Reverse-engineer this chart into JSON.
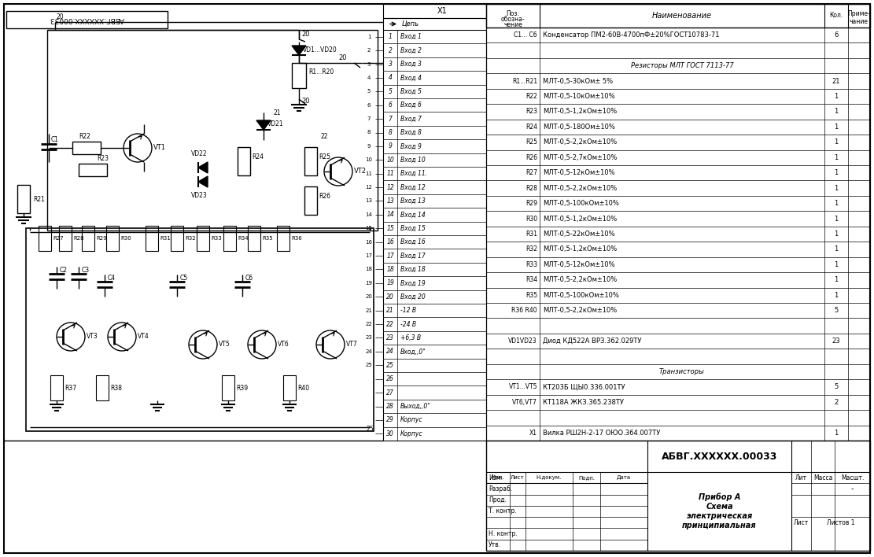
{
  "bg_color": "#ffffff",
  "fig_width": 11.11,
  "fig_height": 7.08,
  "bom_rows": [
    {
      "pos": "C1... C6",
      "name": "Конденсатор ПМ2-60В-4700пФ±20%ГОСТ10783-71",
      "qty": "6",
      "section": false
    },
    {
      "pos": "",
      "name": "",
      "qty": "",
      "section": false
    },
    {
      "pos": "",
      "name": "Резисторы МЛТ ГОСТ 7113-77",
      "qty": "",
      "section": true
    },
    {
      "pos": "R1...R21",
      "name": "МЛТ-0,5-30кОм± 5%",
      "qty": "21",
      "section": false
    },
    {
      "pos": "R22",
      "name": "МЛТ-0,5-10кОм±10%",
      "qty": "1",
      "section": false
    },
    {
      "pos": "R23",
      "name": "МЛТ-0,5-1,2кОм±10%",
      "qty": "1",
      "section": false
    },
    {
      "pos": "R24",
      "name": "МЛТ-0,5-180Ом±10%",
      "qty": "1",
      "section": false
    },
    {
      "pos": "R25",
      "name": "МЛТ-0,5-2,2кОм±10%",
      "qty": "1",
      "section": false
    },
    {
      "pos": "R26",
      "name": "МЛТ-0,5-2,7кОм±10%",
      "qty": "1",
      "section": false
    },
    {
      "pos": "R27",
      "name": "МЛТ-0,5-12кОм±10%",
      "qty": "1",
      "section": false
    },
    {
      "pos": "R28",
      "name": "МЛТ-0,5-2,2кОм±10%",
      "qty": "1",
      "section": false
    },
    {
      "pos": "R29",
      "name": "МЛТ-0,5-100кОм±10%",
      "qty": "1",
      "section": false
    },
    {
      "pos": "R30",
      "name": "МЛТ-0,5-1,2кОм±10%",
      "qty": "1",
      "section": false
    },
    {
      "pos": "R31",
      "name": "МЛТ-0,5-22кОм±10%",
      "qty": "1",
      "section": false
    },
    {
      "pos": "R32",
      "name": "МЛТ-0,5-1,2кОм±10%",
      "qty": "1",
      "section": false
    },
    {
      "pos": "R33",
      "name": "МЛТ-0,5-12кОм±10%",
      "qty": "1",
      "section": false
    },
    {
      "pos": "R34",
      "name": "МЛТ-0,5-2,2кОм±10%",
      "qty": "1",
      "section": false
    },
    {
      "pos": "R35",
      "name": "МЛТ-0,5-100кОм±10%",
      "qty": "1",
      "section": false
    },
    {
      "pos": "R36 R40",
      "name": "МЛТ-0,5-2,2кОм±10%",
      "qty": "5",
      "section": false
    },
    {
      "pos": "",
      "name": "",
      "qty": "",
      "section": false
    },
    {
      "pos": "VD1VD23",
      "name": "Диод КД522А ВРЗ.362.029ТУ",
      "qty": "23",
      "section": false
    },
    {
      "pos": "",
      "name": "",
      "qty": "",
      "section": false
    },
    {
      "pos": "",
      "name": "Транзисторы",
      "qty": "",
      "section": true
    },
    {
      "pos": "VT1...VT5",
      "name": "КТ203Б ЩЫ0.336.001ТУ",
      "qty": "5",
      "section": false
    },
    {
      "pos": "VT6,VT7",
      "name": "КТ118А ЖКЗ.365.238ТУ",
      "qty": "2",
      "section": false
    },
    {
      "pos": "",
      "name": "",
      "qty": "",
      "section": false
    },
    {
      "pos": "X1",
      "name": "Вилка РШ2Н-2-17 ОЮО.364.007ТУ",
      "qty": "1",
      "section": false
    }
  ],
  "connector_rows": [
    {
      "num": "1",
      "label": "Вход 1"
    },
    {
      "num": "2",
      "label": "Вход 2"
    },
    {
      "num": "3",
      "label": "Вход 3"
    },
    {
      "num": "4",
      "label": "Вход 4"
    },
    {
      "num": "5",
      "label": "Вход 5"
    },
    {
      "num": "6",
      "label": "Вход 6"
    },
    {
      "num": "7",
      "label": "Вход 7"
    },
    {
      "num": "8",
      "label": "Вход 8"
    },
    {
      "num": "9",
      "label": "Вход 9"
    },
    {
      "num": "10",
      "label": "Вход 10"
    },
    {
      "num": "11",
      "label": "Вход 11."
    },
    {
      "num": "12",
      "label": "Вход 12"
    },
    {
      "num": "13",
      "label": "Вход 13"
    },
    {
      "num": "14",
      "label": "Вход 14"
    },
    {
      "num": "15",
      "label": "Вход 15"
    },
    {
      "num": "16",
      "label": "Вход 16"
    },
    {
      "num": "17",
      "label": "Вход 17"
    },
    {
      "num": "18",
      "label": "Вход 18"
    },
    {
      "num": "19",
      "label": "Вход 19"
    },
    {
      "num": "20",
      "label": "Вход 20"
    },
    {
      "num": "21",
      "label": "-12 В"
    },
    {
      "num": "22",
      "label": "-24 В"
    },
    {
      "num": "23",
      "label": "+6,3 В"
    },
    {
      "num": "24",
      "label": "Вход,,0\""
    },
    {
      "num": "25",
      "label": ""
    },
    {
      "num": "26",
      "label": ""
    },
    {
      "num": "27",
      "label": ""
    },
    {
      "num": "28",
      "label": "Выход,,0\""
    },
    {
      "num": "29",
      "label": "Корпус"
    },
    {
      "num": "30",
      "label": "Корпус"
    }
  ]
}
